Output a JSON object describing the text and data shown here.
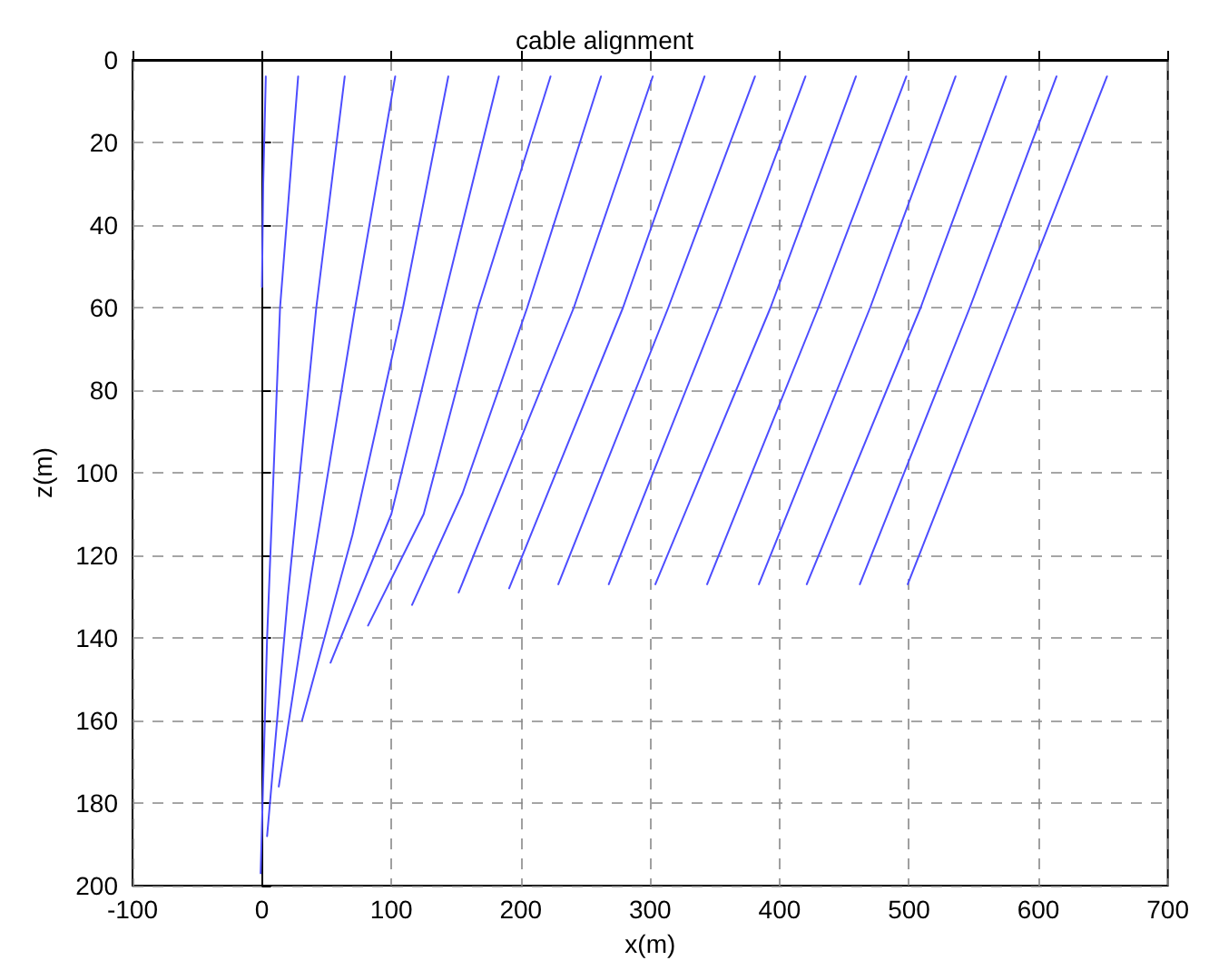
{
  "chart_data": {
    "type": "line",
    "title": "cable alignment",
    "xlabel": "x(m)",
    "ylabel": "z(m)",
    "xlim": [
      -100,
      700
    ],
    "xticks": [
      -100,
      0,
      100,
      200,
      300,
      400,
      500,
      600,
      700
    ],
    "ylim": [
      200,
      0
    ],
    "yticks": [
      0,
      20,
      40,
      60,
      80,
      100,
      120,
      140,
      160,
      180,
      200
    ],
    "grid": true,
    "marker": "none",
    "line_style": "solid",
    "series": [
      {
        "color": "#4d4dff",
        "x": [
          3,
          1,
          0
        ],
        "values": [
          4,
          30,
          55
        ]
      },
      {
        "color": "#4d4dff",
        "x": [
          28,
          14,
          4,
          -1
        ],
        "values": [
          4,
          60,
          140,
          197
        ]
      },
      {
        "color": "#4d4dff",
        "x": [
          64,
          42,
          20,
          4
        ],
        "values": [
          4,
          60,
          130,
          188
        ]
      },
      {
        "color": "#4d4dff",
        "x": [
          103,
          72,
          38,
          13
        ],
        "values": [
          4,
          60,
          125,
          176
        ]
      },
      {
        "color": "#4d4dff",
        "x": [
          144,
          109,
          70,
          31
        ],
        "values": [
          4,
          60,
          115,
          160
        ]
      },
      {
        "color": "#4d4dff",
        "x": [
          183,
          139,
          100,
          53
        ],
        "values": [
          4,
          60,
          110,
          146
        ]
      },
      {
        "color": "#4d4dff",
        "x": [
          223,
          167,
          125,
          82
        ],
        "values": [
          4,
          60,
          110,
          137
        ]
      },
      {
        "color": "#4d4dff",
        "x": [
          262,
          205,
          155,
          116
        ],
        "values": [
          4,
          60,
          105,
          132
        ]
      },
      {
        "color": "#4d4dff",
        "x": [
          302,
          241,
          152
        ],
        "values": [
          4,
          60,
          129
        ]
      },
      {
        "color": "#4d4dff",
        "x": [
          342,
          279,
          191
        ],
        "values": [
          4,
          60,
          128
        ]
      },
      {
        "color": "#4d4dff",
        "x": [
          381,
          314,
          229
        ],
        "values": [
          4,
          60,
          127
        ]
      },
      {
        "color": "#4d4dff",
        "x": [
          420,
          353,
          268
        ],
        "values": [
          4,
          60,
          127
        ]
      },
      {
        "color": "#4d4dff",
        "x": [
          459,
          393,
          304
        ],
        "values": [
          4,
          60,
          127
        ]
      },
      {
        "color": "#4d4dff",
        "x": [
          498,
          430,
          344
        ],
        "values": [
          4,
          60,
          127
        ]
      },
      {
        "color": "#4d4dff",
        "x": [
          536,
          470,
          384
        ],
        "values": [
          4,
          60,
          127
        ]
      },
      {
        "color": "#4d4dff",
        "x": [
          575,
          509,
          421
        ],
        "values": [
          4,
          60,
          127
        ]
      },
      {
        "color": "#4d4dff",
        "x": [
          614,
          547,
          462
        ],
        "values": [
          4,
          60,
          127
        ]
      },
      {
        "color": "#4d4dff",
        "x": [
          653,
          583,
          499
        ],
        "values": [
          4,
          60,
          127
        ]
      }
    ]
  }
}
